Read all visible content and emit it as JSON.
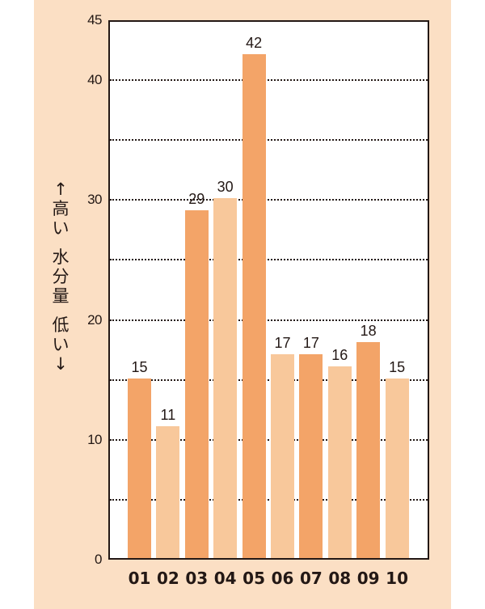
{
  "chart_data": {
    "type": "bar",
    "title": "",
    "xlabel": "",
    "ylabel": "↑高い 水分量 低い↓",
    "ylabel_parts": [
      "↑",
      "高",
      "い",
      "",
      "水",
      "分",
      "量",
      "",
      "低",
      "い",
      "↓"
    ],
    "categories": [
      "01",
      "02",
      "03",
      "04",
      "05",
      "06",
      "07",
      "08",
      "09",
      "10"
    ],
    "values": [
      15,
      11,
      29,
      30,
      42,
      17,
      17,
      16,
      18,
      15
    ],
    "value_labels": [
      "15",
      "11",
      "29",
      "30",
      "42",
      "17",
      "17",
      "16",
      "18",
      "15"
    ],
    "ylim": [
      0,
      45
    ],
    "yticks": [
      "0",
      "10",
      "20",
      "30",
      "40",
      "45"
    ],
    "ytick_values": [
      0,
      10,
      20,
      30,
      40,
      45
    ],
    "gridlines": [
      5,
      10,
      15,
      20,
      25,
      30,
      35,
      40
    ],
    "grid": true,
    "grid_style": "dotted",
    "legend": null,
    "bar_colors": [
      "#f3a468",
      "#f8c89b",
      "#f3a468",
      "#f8c89b",
      "#f3a468",
      "#f8c89b",
      "#f3a468",
      "#f8c89b",
      "#f3a468",
      "#f8c89b"
    ]
  },
  "colors": {
    "background_panel": "#fbdfc4",
    "bar_dark": "#f3a468",
    "bar_light": "#f8c89b",
    "axis": "#231815"
  }
}
